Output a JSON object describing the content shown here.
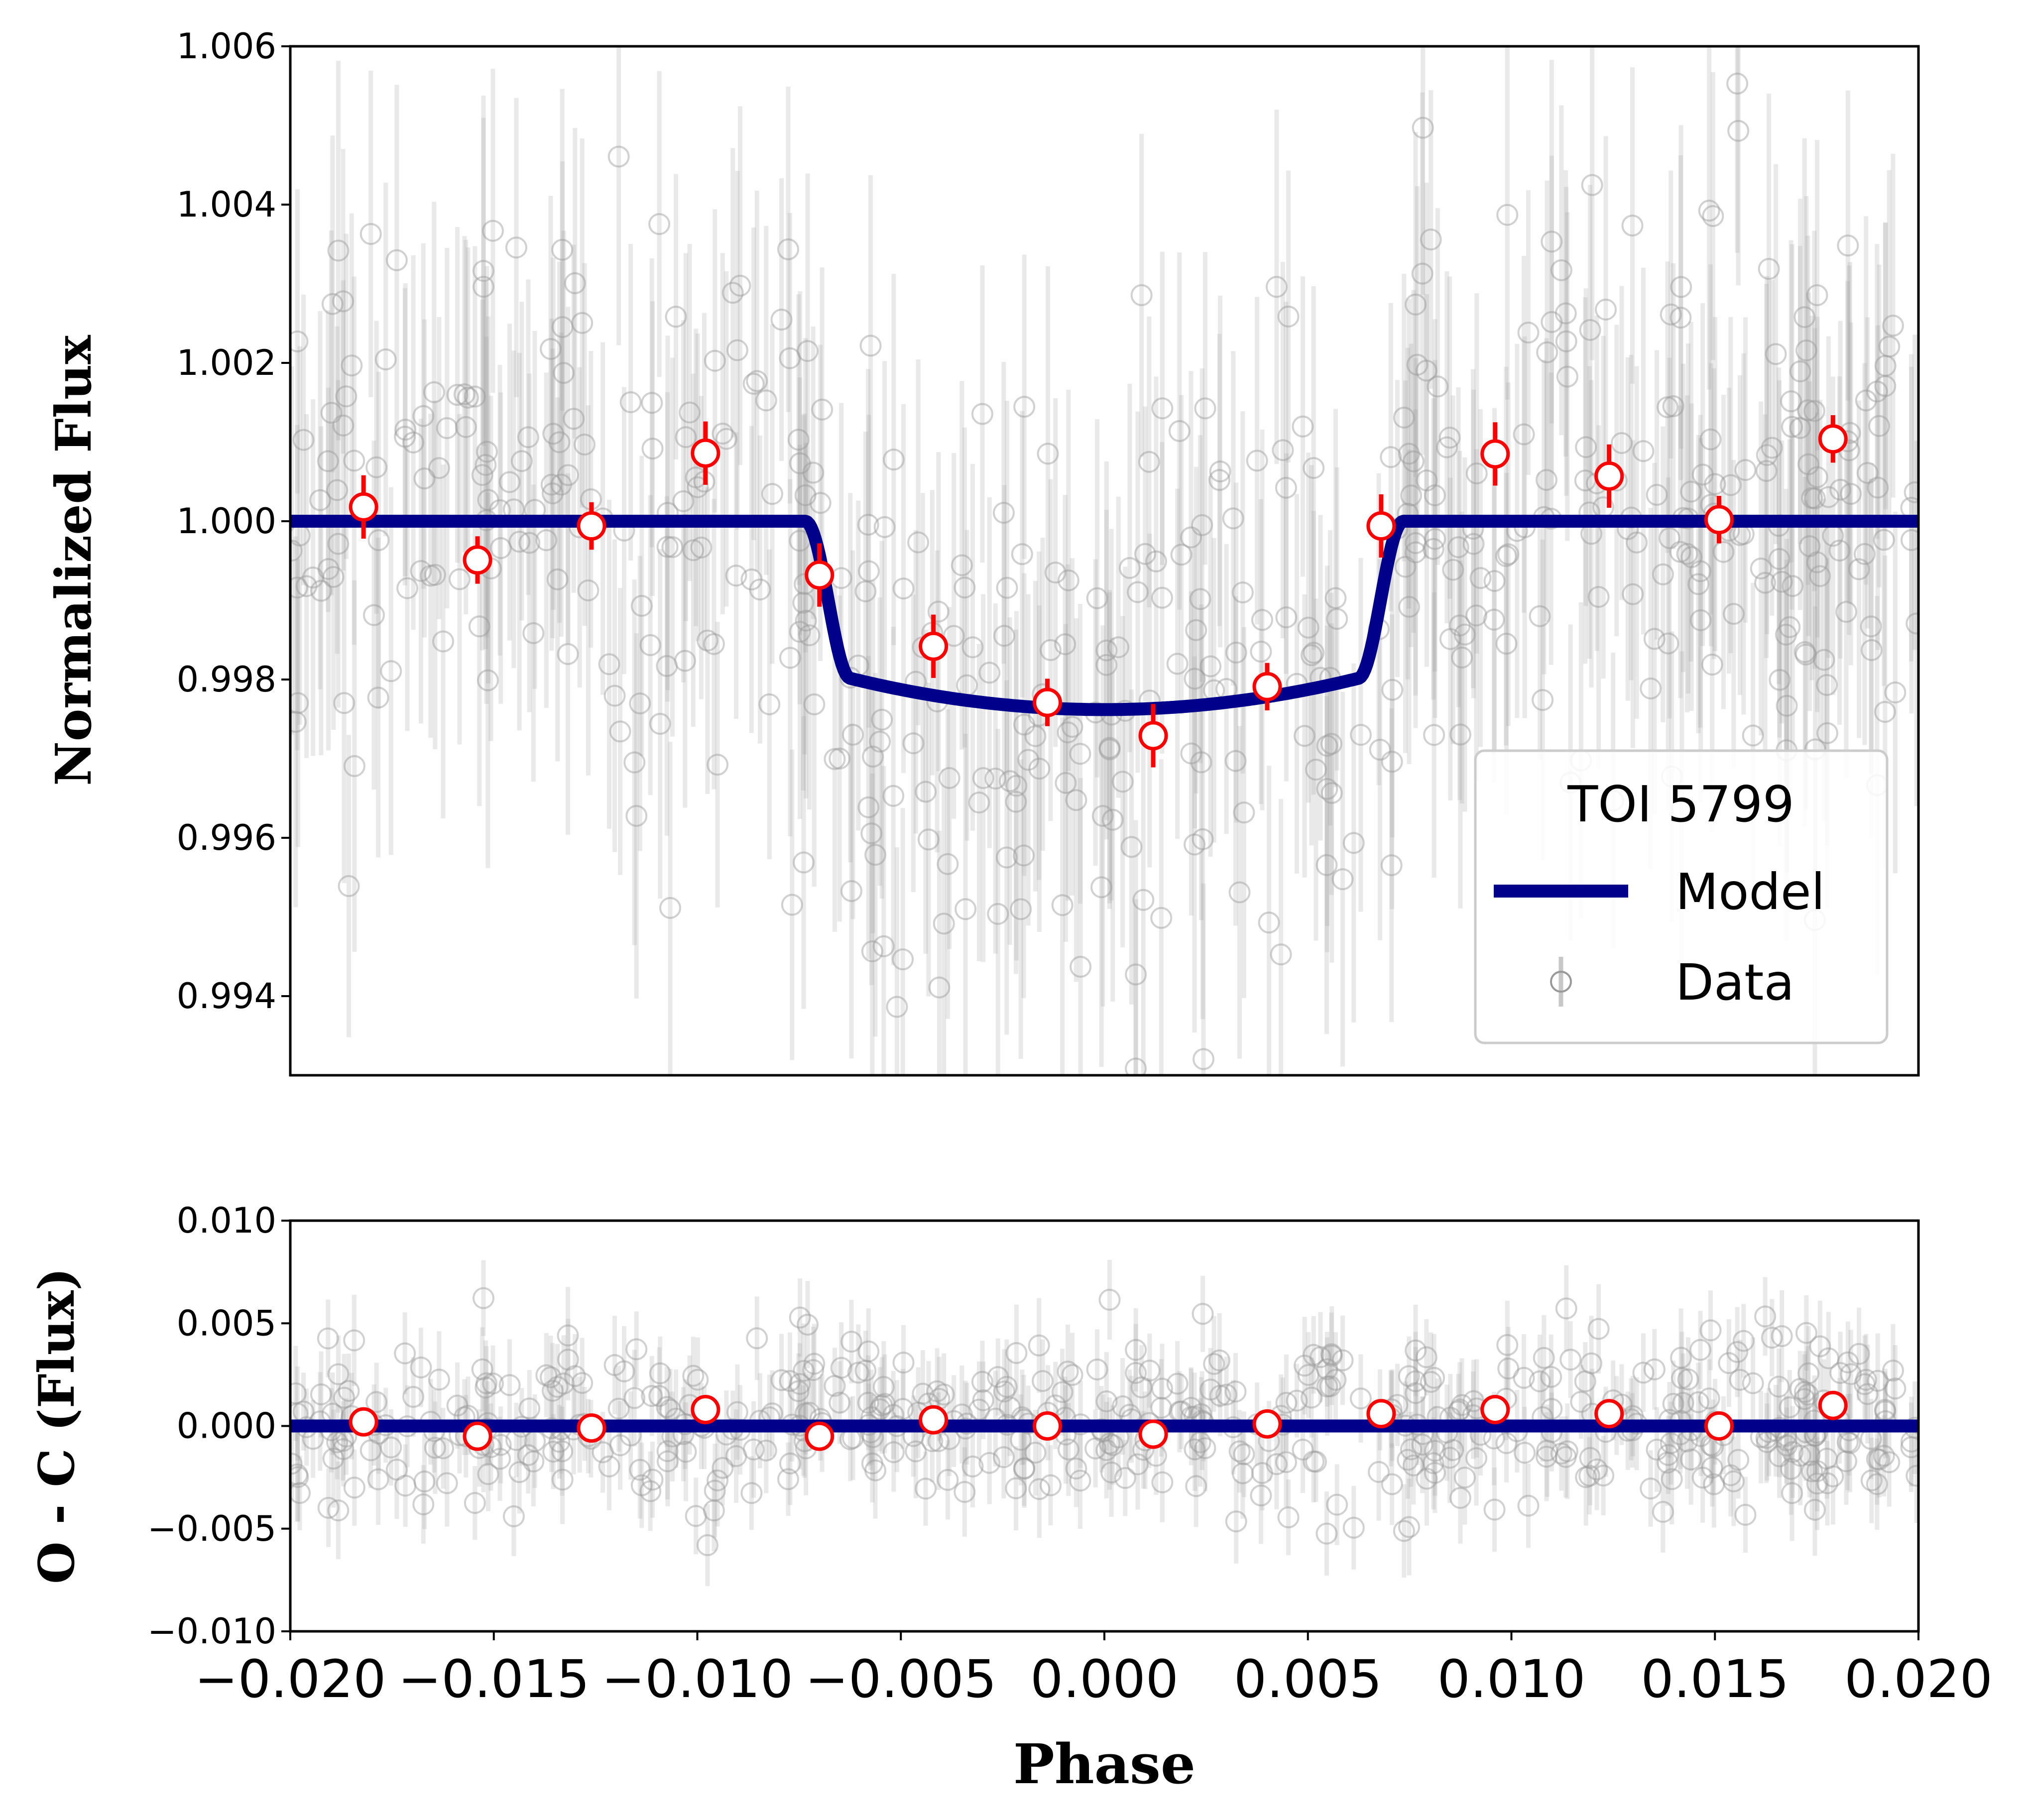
{
  "chart_data": [
    {
      "type": "scatter",
      "panel": "top",
      "title": "",
      "xlabel": "",
      "ylabel": "Normalized Flux",
      "xlim": [
        -0.02,
        0.02
      ],
      "ylim": [
        0.993,
        1.006
      ],
      "yticks": [
        0.994,
        0.996,
        0.998,
        1.0,
        1.002,
        1.004,
        1.006
      ],
      "ytick_labels": [
        "0.994",
        "0.996",
        "0.998",
        "1.000",
        "1.002",
        "1.004",
        "1.006"
      ],
      "legend": {
        "title": "TOI 5799",
        "placement": "lower-right",
        "entries": [
          {
            "label": "Model",
            "marker": "line",
            "color": "#00008b"
          },
          {
            "label": "Data",
            "marker": "open-circle-errorbar",
            "color": "#999999"
          }
        ]
      },
      "model": {
        "name": "Model",
        "color": "#00008b",
        "transit_center": 0.0,
        "ingress_start": -0.0075,
        "egress_end": 0.0072,
        "baseline": 1.0,
        "depth_at_center": 0.99762
      },
      "binned": {
        "name": "Binned",
        "face_color": "#ffffff",
        "edge_color": "#ff0000",
        "x": [
          -0.0182,
          -0.0154,
          -0.0126,
          -0.0098,
          -0.007,
          -0.0042,
          -0.0014,
          0.0012,
          0.004,
          0.0068,
          0.0096,
          0.0124,
          0.0151,
          0.0179
        ],
        "y": [
          1.00018,
          0.99951,
          0.99994,
          1.00086,
          0.99932,
          0.99842,
          0.99771,
          0.99729,
          0.99791,
          0.99994,
          1.00085,
          1.00057,
          1.00002,
          1.00104
        ],
        "yerr": [
          0.0004,
          0.0003,
          0.0003,
          0.0004,
          0.0004,
          0.0004,
          0.0003,
          0.0004,
          0.0003,
          0.0004,
          0.0004,
          0.0004,
          0.0003,
          0.0003
        ]
      },
      "raw_data": {
        "name": "Data",
        "color": "#999999",
        "n_points": 520,
        "x_range": [
          -0.02,
          0.02
        ],
        "scatter_sigma": 0.0019,
        "typical_yerr": 0.0021
      }
    },
    {
      "type": "scatter",
      "panel": "bottom",
      "title": "",
      "xlabel": "Phase",
      "ylabel": "O - C (Flux)",
      "xlim": [
        -0.02,
        0.02
      ],
      "ylim": [
        -0.01,
        0.01
      ],
      "xticks": [
        -0.02,
        -0.015,
        -0.01,
        -0.005,
        0.0,
        0.005,
        0.01,
        0.015,
        0.02
      ],
      "xtick_labels": [
        "−0.020",
        "−0.015",
        "−0.010",
        "−0.005",
        "0.000",
        "0.005",
        "0.010",
        "0.015",
        "0.020"
      ],
      "yticks": [
        -0.01,
        -0.005,
        0.0,
        0.005,
        0.01
      ],
      "ytick_labels": [
        "−0.010",
        "−0.005",
        "0.000",
        "0.005",
        "0.010"
      ],
      "zero_line": {
        "y": 0.0,
        "color": "#00008b"
      },
      "binned": {
        "name": "Binned residuals",
        "face_color": "#ffffff",
        "edge_color": "#ff0000",
        "x": [
          -0.0182,
          -0.0154,
          -0.0126,
          -0.0098,
          -0.007,
          -0.0042,
          -0.0014,
          0.0012,
          0.004,
          0.0068,
          0.0096,
          0.0124,
          0.0151,
          0.0179
        ],
        "y": [
          0.0002,
          -0.0005,
          -0.0001,
          0.0008,
          -0.0005,
          0.0003,
          0.0,
          -0.0004,
          0.0001,
          0.0006,
          0.0008,
          0.0006,
          0.0,
          0.001
        ]
      },
      "raw_data": {
        "name": "Residuals",
        "color": "#999999",
        "n_points": 520,
        "scatter_sigma": 0.0022,
        "typical_yerr": 0.0021
      }
    }
  ]
}
